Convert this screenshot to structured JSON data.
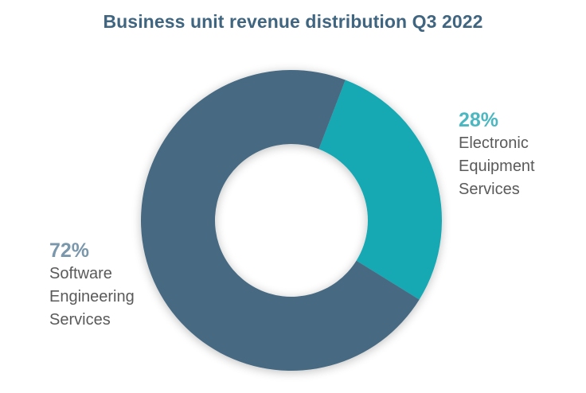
{
  "colors": {
    "title": "#3f6580",
    "slice_software": "#466a82",
    "slice_electronic": "#14a8b3",
    "pct_software": "#7a97ab",
    "pct_electronic": "#4bb8c1",
    "label_text": "#5a5a5a"
  },
  "chart_data": {
    "type": "pie",
    "title": "Business unit revenue distribution Q3 2022",
    "donut": true,
    "categories": [
      "Electronic Equipment Services",
      "Software Engineering Services"
    ],
    "values": [
      28,
      72
    ],
    "labels": [
      {
        "pct": "28%",
        "lines": [
          "Electronic",
          "Equipment",
          "Services"
        ]
      },
      {
        "pct": "72%",
        "lines": [
          "Software",
          "Engineering",
          "Services"
        ]
      }
    ]
  }
}
